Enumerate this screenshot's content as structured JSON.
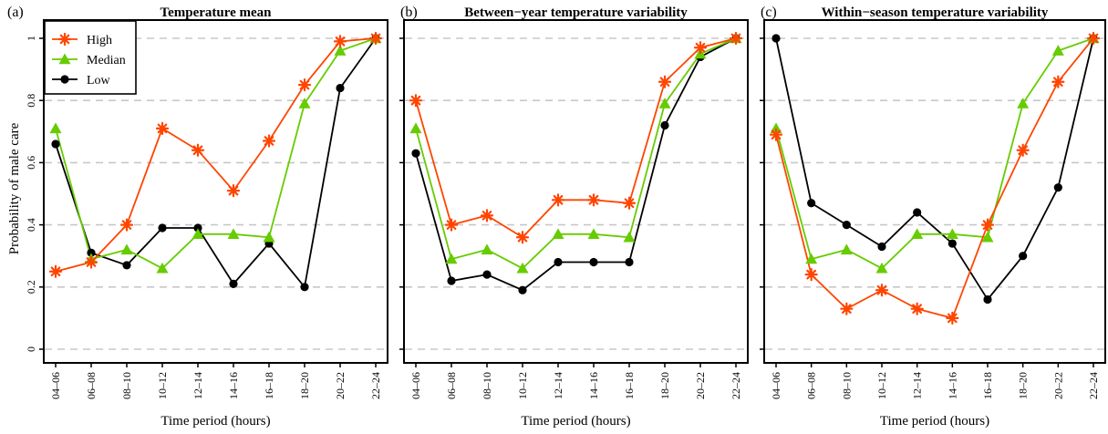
{
  "figure": {
    "ylabel": "Probability of male care",
    "xlabel": "Time period (hours)"
  },
  "legend": [
    {
      "name": "High",
      "color": "#ff4500",
      "marker": "asterisk"
    },
    {
      "name": "Median",
      "color": "#66cc00",
      "marker": "triangle"
    },
    {
      "name": "Low",
      "color": "#000000",
      "marker": "circle"
    }
  ],
  "chart_data": [
    {
      "type": "line",
      "panel": "(a)",
      "title": "Temperature mean",
      "xlabel": "Time period (hours)",
      "ylabel": "Probability of male care",
      "categories": [
        "04–06",
        "06–08",
        "08–10",
        "10–12",
        "12–14",
        "14–16",
        "16–18",
        "18–20",
        "20–22",
        "22–24"
      ],
      "ylim": [
        0,
        1
      ],
      "yticks": [
        0,
        0.2,
        0.4,
        0.6,
        0.8,
        1
      ],
      "ytick_labels": [
        "0",
        "0.2",
        "0.4",
        "0.6",
        "0.8",
        "1"
      ],
      "grid": "horizontal dashed",
      "legend_position": "top-left",
      "series": [
        {
          "name": "High",
          "color": "#ff4500",
          "marker": "asterisk",
          "values": [
            0.25,
            0.28,
            0.4,
            0.71,
            0.64,
            0.51,
            0.67,
            0.85,
            0.99,
            1.0
          ]
        },
        {
          "name": "Median",
          "color": "#66cc00",
          "marker": "triangle",
          "values": [
            0.71,
            0.29,
            0.32,
            0.26,
            0.37,
            0.37,
            0.36,
            0.79,
            0.96,
            1.0
          ]
        },
        {
          "name": "Low",
          "color": "#000000",
          "marker": "circle",
          "values": [
            0.66,
            0.31,
            0.27,
            0.39,
            0.39,
            0.21,
            0.34,
            0.2,
            0.84,
            1.0
          ]
        }
      ]
    },
    {
      "type": "line",
      "panel": "(b)",
      "title": "Between−year temperature variability",
      "xlabel": "Time period (hours)",
      "categories": [
        "04–06",
        "06–08",
        "08–10",
        "10–12",
        "12–14",
        "14–16",
        "16–18",
        "18–20",
        "20–22",
        "22–24"
      ],
      "ylim": [
        0,
        1
      ],
      "yticks": [
        0,
        0.2,
        0.4,
        0.6,
        0.8,
        1
      ],
      "grid": "horizontal dashed",
      "series": [
        {
          "name": "High",
          "color": "#ff4500",
          "marker": "asterisk",
          "values": [
            0.8,
            0.4,
            0.43,
            0.36,
            0.48,
            0.48,
            0.47,
            0.86,
            0.97,
            1.0
          ]
        },
        {
          "name": "Median",
          "color": "#66cc00",
          "marker": "triangle",
          "values": [
            0.71,
            0.29,
            0.32,
            0.26,
            0.37,
            0.37,
            0.36,
            0.79,
            0.95,
            1.0
          ]
        },
        {
          "name": "Low",
          "color": "#000000",
          "marker": "circle",
          "values": [
            0.63,
            0.22,
            0.24,
            0.19,
            0.28,
            0.28,
            0.28,
            0.72,
            0.94,
            1.0
          ]
        }
      ]
    },
    {
      "type": "line",
      "panel": "(c)",
      "title": "Within−season temperature variability",
      "xlabel": "Time period (hours)",
      "categories": [
        "04–06",
        "06–08",
        "08–10",
        "10–12",
        "12–14",
        "14–16",
        "16–18",
        "18–20",
        "20–22",
        "22–24"
      ],
      "ylim": [
        0,
        1
      ],
      "yticks": [
        0,
        0.2,
        0.4,
        0.6,
        0.8,
        1
      ],
      "grid": "horizontal dashed",
      "series": [
        {
          "name": "High",
          "color": "#ff4500",
          "marker": "asterisk",
          "values": [
            0.69,
            0.24,
            0.13,
            0.19,
            0.13,
            0.1,
            0.4,
            0.64,
            0.86,
            1.0
          ]
        },
        {
          "name": "Median",
          "color": "#66cc00",
          "marker": "triangle",
          "values": [
            0.71,
            0.29,
            0.32,
            0.26,
            0.37,
            0.37,
            0.36,
            0.79,
            0.96,
            1.0
          ]
        },
        {
          "name": "Low",
          "color": "#000000",
          "marker": "circle",
          "values": [
            1.0,
            0.47,
            0.4,
            0.33,
            0.44,
            0.34,
            0.16,
            0.3,
            0.52,
            1.0
          ]
        }
      ]
    }
  ]
}
